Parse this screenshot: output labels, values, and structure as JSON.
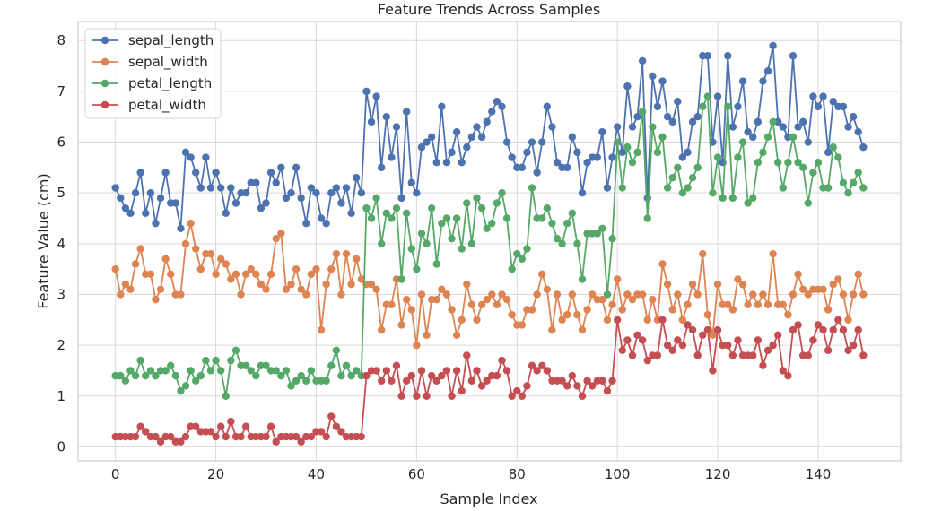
{
  "chart_data": {
    "type": "line",
    "title": "Feature Trends Across Samples",
    "xlabel": "Sample Index",
    "ylabel": "Feature Value (cm)",
    "xlim": [
      -7.45,
      156.45
    ],
    "ylim": [
      -0.275,
      8.375
    ],
    "xticks": [
      0,
      20,
      40,
      60,
      80,
      100,
      120,
      140
    ],
    "yticks": [
      0,
      1,
      2,
      3,
      4,
      5,
      6,
      7,
      8
    ],
    "grid": true,
    "legend": "top-left",
    "marker": "circle",
    "series": [
      {
        "name": "sepal_length",
        "color": "#4c72b0",
        "values": [
          5.1,
          4.9,
          4.7,
          4.6,
          5.0,
          5.4,
          4.6,
          5.0,
          4.4,
          4.9,
          5.4,
          4.8,
          4.8,
          4.3,
          5.8,
          5.7,
          5.4,
          5.1,
          5.7,
          5.1,
          5.4,
          5.1,
          4.6,
          5.1,
          4.8,
          5.0,
          5.0,
          5.2,
          5.2,
          4.7,
          4.8,
          5.4,
          5.2,
          5.5,
          4.9,
          5.0,
          5.5,
          4.9,
          4.4,
          5.1,
          5.0,
          4.5,
          4.4,
          5.0,
          5.1,
          4.8,
          5.1,
          4.6,
          5.3,
          5.0,
          7.0,
          6.4,
          6.9,
          5.5,
          6.5,
          5.7,
          6.3,
          4.9,
          6.6,
          5.2,
          5.0,
          5.9,
          6.0,
          6.1,
          5.6,
          6.7,
          5.6,
          5.8,
          6.2,
          5.6,
          5.9,
          6.1,
          6.3,
          6.1,
          6.4,
          6.6,
          6.8,
          6.7,
          6.0,
          5.7,
          5.5,
          5.5,
          5.8,
          6.0,
          5.4,
          6.0,
          6.7,
          6.3,
          5.6,
          5.5,
          5.5,
          6.1,
          5.8,
          5.0,
          5.6,
          5.7,
          5.7,
          6.2,
          5.1,
          5.7,
          6.3,
          5.8,
          7.1,
          6.3,
          6.5,
          7.6,
          4.9,
          7.3,
          6.7,
          7.2,
          6.5,
          6.4,
          6.8,
          5.7,
          5.8,
          6.4,
          6.5,
          7.7,
          7.7,
          6.0,
          6.9,
          5.6,
          7.7,
          6.3,
          6.7,
          7.2,
          6.2,
          6.1,
          6.4,
          7.2,
          7.4,
          7.9,
          6.4,
          6.3,
          6.1,
          7.7,
          6.3,
          6.4,
          6.0,
          6.9,
          6.7,
          6.9,
          5.8,
          6.8,
          6.7,
          6.7,
          6.3,
          6.5,
          6.2,
          5.9
        ]
      },
      {
        "name": "sepal_width",
        "color": "#dd8452",
        "values": [
          3.5,
          3.0,
          3.2,
          3.1,
          3.6,
          3.9,
          3.4,
          3.4,
          2.9,
          3.1,
          3.7,
          3.4,
          3.0,
          3.0,
          4.0,
          4.4,
          3.9,
          3.5,
          3.8,
          3.8,
          3.4,
          3.7,
          3.6,
          3.3,
          3.4,
          3.0,
          3.4,
          3.5,
          3.4,
          3.2,
          3.1,
          3.4,
          4.1,
          4.2,
          3.1,
          3.2,
          3.5,
          3.1,
          3.0,
          3.4,
          3.5,
          2.3,
          3.2,
          3.5,
          3.8,
          3.0,
          3.8,
          3.2,
          3.7,
          3.3,
          3.2,
          3.2,
          3.1,
          2.3,
          2.8,
          2.8,
          3.3,
          2.4,
          2.9,
          2.7,
          2.0,
          3.0,
          2.2,
          2.9,
          2.9,
          3.1,
          3.0,
          2.7,
          2.2,
          2.5,
          3.2,
          2.8,
          2.5,
          2.8,
          2.9,
          3.0,
          2.8,
          3.0,
          2.9,
          2.6,
          2.4,
          2.4,
          2.7,
          2.7,
          3.0,
          3.4,
          3.1,
          2.3,
          3.0,
          2.5,
          2.6,
          3.0,
          2.6,
          2.3,
          2.7,
          3.0,
          2.9,
          2.9,
          2.5,
          2.8,
          3.3,
          2.7,
          3.0,
          2.9,
          3.0,
          3.0,
          2.5,
          2.9,
          2.5,
          3.6,
          3.2,
          2.7,
          3.0,
          2.5,
          2.8,
          3.2,
          3.0,
          3.8,
          2.6,
          2.2,
          3.2,
          2.8,
          2.8,
          2.7,
          3.3,
          3.2,
          2.8,
          3.0,
          2.8,
          3.0,
          2.8,
          3.8,
          2.8,
          2.8,
          2.6,
          3.0,
          3.4,
          3.1,
          3.0,
          3.1,
          3.1,
          3.1,
          2.7,
          3.2,
          3.3,
          3.0,
          2.5,
          3.0,
          3.4,
          3.0
        ]
      },
      {
        "name": "petal_length",
        "color": "#55a868",
        "values": [
          1.4,
          1.4,
          1.3,
          1.5,
          1.4,
          1.7,
          1.4,
          1.5,
          1.4,
          1.5,
          1.5,
          1.6,
          1.4,
          1.1,
          1.2,
          1.5,
          1.3,
          1.4,
          1.7,
          1.5,
          1.7,
          1.5,
          1.0,
          1.7,
          1.9,
          1.6,
          1.6,
          1.5,
          1.4,
          1.6,
          1.6,
          1.5,
          1.5,
          1.4,
          1.5,
          1.2,
          1.3,
          1.4,
          1.3,
          1.5,
          1.3,
          1.3,
          1.3,
          1.6,
          1.9,
          1.4,
          1.6,
          1.4,
          1.5,
          1.4,
          4.7,
          4.5,
          4.9,
          4.0,
          4.6,
          4.5,
          4.7,
          3.3,
          4.6,
          3.9,
          3.5,
          4.2,
          4.0,
          4.7,
          3.6,
          4.4,
          4.5,
          4.1,
          4.5,
          3.9,
          4.8,
          4.0,
          4.9,
          4.7,
          4.3,
          4.4,
          4.8,
          5.0,
          4.5,
          3.5,
          3.8,
          3.7,
          3.9,
          5.1,
          4.5,
          4.5,
          4.7,
          4.4,
          4.1,
          4.0,
          4.4,
          4.6,
          4.0,
          3.3,
          4.2,
          4.2,
          4.2,
          4.3,
          3.0,
          4.1,
          6.0,
          5.1,
          5.9,
          5.6,
          5.8,
          6.6,
          4.5,
          6.3,
          5.8,
          6.1,
          5.1,
          5.3,
          5.5,
          5.0,
          5.1,
          5.3,
          5.5,
          6.7,
          6.9,
          5.0,
          5.7,
          4.9,
          6.7,
          4.9,
          5.7,
          6.0,
          4.8,
          4.9,
          5.6,
          5.8,
          6.1,
          6.4,
          5.6,
          5.1,
          5.6,
          6.1,
          5.6,
          5.5,
          4.8,
          5.4,
          5.6,
          5.1,
          5.1,
          5.9,
          5.7,
          5.2,
          5.0,
          5.2,
          5.4,
          5.1
        ]
      },
      {
        "name": "petal_width",
        "color": "#c44e52",
        "values": [
          0.2,
          0.2,
          0.2,
          0.2,
          0.2,
          0.4,
          0.3,
          0.2,
          0.2,
          0.1,
          0.2,
          0.2,
          0.1,
          0.1,
          0.2,
          0.4,
          0.4,
          0.3,
          0.3,
          0.3,
          0.2,
          0.4,
          0.2,
          0.5,
          0.2,
          0.2,
          0.4,
          0.2,
          0.2,
          0.2,
          0.2,
          0.4,
          0.1,
          0.2,
          0.2,
          0.2,
          0.2,
          0.1,
          0.2,
          0.2,
          0.3,
          0.3,
          0.2,
          0.6,
          0.4,
          0.3,
          0.2,
          0.2,
          0.2,
          0.2,
          1.4,
          1.5,
          1.5,
          1.3,
          1.5,
          1.3,
          1.6,
          1.0,
          1.3,
          1.4,
          1.0,
          1.5,
          1.0,
          1.4,
          1.3,
          1.4,
          1.5,
          1.0,
          1.5,
          1.1,
          1.8,
          1.3,
          1.5,
          1.2,
          1.3,
          1.4,
          1.4,
          1.7,
          1.5,
          1.0,
          1.1,
          1.0,
          1.2,
          1.6,
          1.5,
          1.6,
          1.5,
          1.3,
          1.3,
          1.3,
          1.2,
          1.4,
          1.2,
          1.0,
          1.3,
          1.2,
          1.3,
          1.3,
          1.1,
          1.3,
          2.5,
          1.9,
          2.1,
          1.8,
          2.2,
          2.1,
          1.7,
          1.8,
          1.8,
          2.5,
          2.0,
          1.9,
          2.1,
          2.0,
          2.4,
          2.3,
          1.8,
          2.2,
          2.3,
          1.5,
          2.3,
          2.0,
          2.0,
          1.8,
          2.1,
          1.8,
          1.8,
          1.8,
          2.1,
          1.6,
          1.9,
          2.0,
          2.2,
          1.5,
          1.4,
          2.3,
          2.4,
          1.8,
          1.8,
          2.1,
          2.4,
          2.3,
          1.9,
          2.3,
          2.5,
          2.3,
          1.9,
          2.0,
          2.3,
          1.8
        ]
      }
    ]
  }
}
